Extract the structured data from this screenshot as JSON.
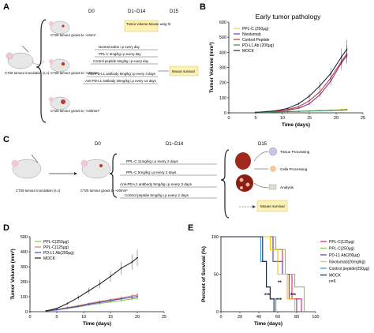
{
  "panels": {
    "a": "A",
    "b": "B",
    "c": "C",
    "d": "D",
    "e": "E"
  },
  "panel_a": {
    "headers": [
      "D0",
      "D1~D14",
      "D15"
    ],
    "inoculation": "CT26 tumour inoculation (s.c)",
    "growth_labels": [
      "CT26 tumour grows to ~2mm³",
      "CT26 tumour grows to ~40mm³",
      "CT26 tumour grows to ~100mm³"
    ],
    "box_top": "Tumor volume Mouse weig ht",
    "treatments": [
      "Normal saline i.p every day",
      "PPL-C 5mg/kg i.p every day",
      "Control peptide 5mg/kg i.p every day",
      "Anti-PD-L1 antibody 5mg/kg i.p every 3 days",
      "Anti-PD-L1 antibody 20mg/kg i.p every 14 days"
    ],
    "box_bottom": "Mouse survival"
  },
  "panel_c": {
    "headers": [
      "D0",
      "D1~D14",
      "D15"
    ],
    "inoculation": "CT26 tumour inoculation (s.c)",
    "growth": "CT26 tumour grows to ~20mm³",
    "treatments": [
      "PPL-C 11mg/kg i.p every 2 days",
      "PPL-C 5mg/kg i.p every 2 days",
      "Anti-PD-L1 antibody 5mg/kg i.p every 3 days",
      "Control peptide 5mg/kg i.p every 2 days"
    ],
    "outcomes": [
      "Tissue Processing",
      "Cells Processing",
      "Analysis"
    ],
    "survival": "Mouse survival"
  },
  "chart_data": [
    {
      "type": "line",
      "title": "Early tumor pathology",
      "xlabel": "Time (days)",
      "ylabel": "Tumor Volume (mm³)",
      "xlim": [
        0,
        25
      ],
      "ylim": [
        0,
        600
      ],
      "xticks": [
        "0",
        "5",
        "10",
        "15",
        "20",
        "25"
      ],
      "yticks": [
        "0",
        "100",
        "200",
        "300",
        "400",
        "500",
        "600"
      ],
      "legend_position": "top-left",
      "x": [
        5,
        7,
        9,
        11,
        13,
        15,
        17,
        19,
        21,
        22
      ],
      "series": [
        {
          "name": "PPL-C (250μg)",
          "color": "#e8d640",
          "values": [
            2,
            4,
            6,
            8,
            10,
            12,
            15,
            18,
            22,
            24
          ]
        },
        {
          "name": "Nivolumab",
          "color": "#7d3c98",
          "values": [
            3,
            6,
            10,
            18,
            30,
            60,
            120,
            210,
            330,
            380
          ]
        },
        {
          "name": "Control Peptide",
          "color": "#c0392b",
          "values": [
            3,
            6,
            12,
            22,
            40,
            80,
            140,
            230,
            340,
            390
          ]
        },
        {
          "name": "PD-L1 Ab (200μg)",
          "color": "#2e8b57",
          "values": [
            2,
            4,
            6,
            8,
            10,
            12,
            14,
            16,
            18,
            20
          ]
        },
        {
          "name": "MOCK",
          "color": "#1f2a44",
          "values": [
            3,
            8,
            15,
            30,
            60,
            110,
            180,
            260,
            370,
            420
          ]
        }
      ]
    },
    {
      "type": "line",
      "title": "",
      "xlabel": "Time (days)",
      "ylabel": "Tumor Volume (mm³)",
      "xlim": [
        0,
        25
      ],
      "ylim": [
        0,
        500
      ],
      "xticks": [
        "0",
        "5",
        "10",
        "15",
        "20",
        "25"
      ],
      "yticks": [
        "0",
        "100",
        "200",
        "300",
        "400",
        "500"
      ],
      "legend_position": "top-left",
      "x": [
        3,
        5,
        7,
        9,
        11,
        13,
        15,
        17,
        19,
        20
      ],
      "series": [
        {
          "name": "PPL-C(250μg)",
          "color": "#8bc34a",
          "values": [
            5,
            12,
            22,
            32,
            45,
            55,
            65,
            75,
            85,
            90
          ]
        },
        {
          "name": "PPL-C(125μg)",
          "color": "#e57373",
          "values": [
            5,
            14,
            28,
            40,
            55,
            68,
            80,
            92,
            105,
            112
          ]
        },
        {
          "name": "PD-L1 Ab(200μg)",
          "color": "#3f51b5",
          "values": [
            5,
            12,
            24,
            36,
            50,
            62,
            74,
            86,
            96,
            102
          ]
        },
        {
          "name": "MOCK",
          "color": "#222222",
          "values": [
            5,
            22,
            55,
            95,
            140,
            185,
            235,
            290,
            330,
            360
          ]
        }
      ]
    },
    {
      "type": "line",
      "title": "",
      "xlabel": "Time (days)",
      "ylabel": "Percent of Survival (%)",
      "xlim": [
        0,
        100
      ],
      "ylim": [
        0,
        100
      ],
      "xticks": [
        "0",
        "20",
        "40",
        "60",
        "80",
        "100"
      ],
      "yticks": [
        "0",
        "50",
        "100"
      ],
      "legend_position": "right",
      "annotations": [
        "**",
        "***",
        "***",
        "***"
      ],
      "note": "n=6",
      "series": [
        {
          "name": "PPL-C(125μg)",
          "color": "#e91e63",
          "x": [
            0,
            55,
            55,
            65,
            65,
            75,
            75,
            85,
            85
          ],
          "values": [
            100,
            100,
            83,
            83,
            50,
            50,
            17,
            17,
            0
          ]
        },
        {
          "name": "PPL-C(250μg)",
          "color": "#8bc34a",
          "x": [
            0,
            58,
            58,
            68,
            68,
            78,
            78,
            88,
            88
          ],
          "values": [
            100,
            100,
            83,
            83,
            50,
            50,
            33,
            33,
            0
          ]
        },
        {
          "name": "PD-L1 Ab(200μg)",
          "color": "#673ab7",
          "x": [
            0,
            55,
            55,
            65,
            65,
            72,
            72,
            80,
            80
          ],
          "values": [
            100,
            100,
            67,
            67,
            50,
            50,
            17,
            17,
            0
          ]
        },
        {
          "name": "Nivolumab(26mg/kg)",
          "color": "#f1c40f",
          "x": [
            0,
            52,
            52,
            60,
            60,
            70,
            70,
            78,
            78
          ],
          "values": [
            100,
            100,
            83,
            83,
            50,
            50,
            17,
            17,
            0
          ]
        },
        {
          "name": "Control peptide(250μg)",
          "color": "#3498db",
          "x": [
            0,
            42,
            42,
            48,
            48,
            52,
            52,
            58,
            58
          ],
          "values": [
            100,
            100,
            67,
            67,
            33,
            33,
            17,
            17,
            0
          ]
        },
        {
          "name": "MOCK",
          "color": "#1a1a3a",
          "x": [
            0,
            44,
            44,
            48,
            48,
            52,
            52,
            56,
            56
          ],
          "values": [
            100,
            100,
            67,
            67,
            33,
            33,
            17,
            17,
            0
          ]
        }
      ]
    }
  ]
}
